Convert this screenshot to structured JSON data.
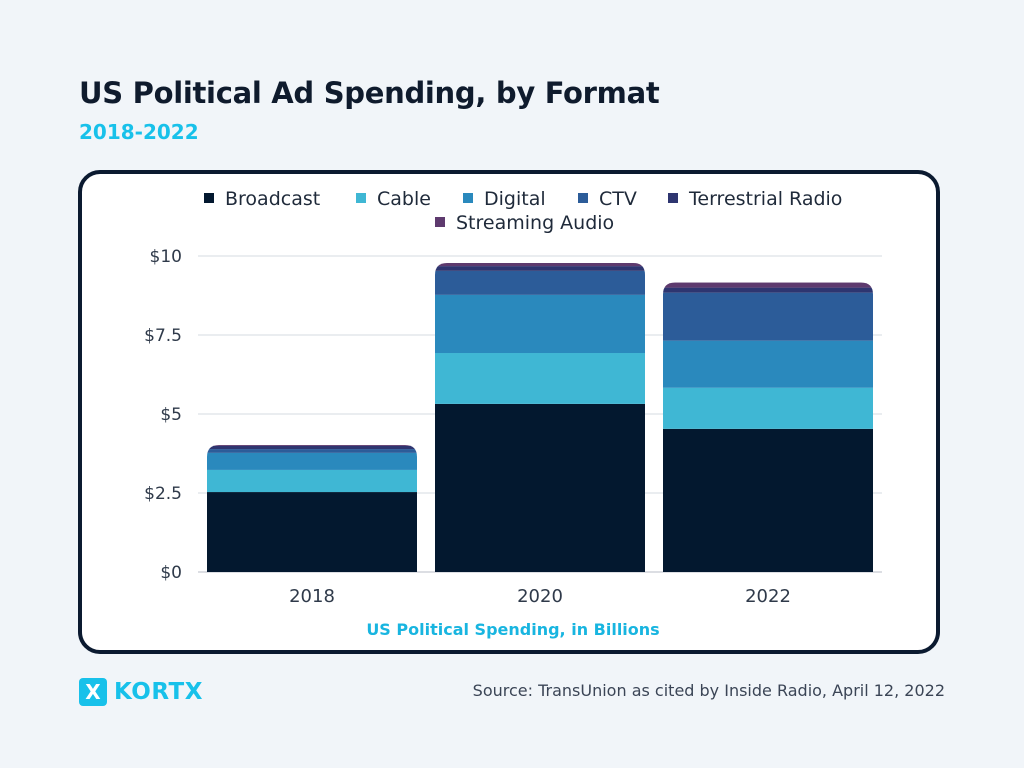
{
  "header": {
    "title": "US Political Ad Spending, by Format",
    "subtitle": "2018-2022"
  },
  "footer": {
    "logo_mark": "X",
    "logo_text": "KORTX",
    "source": "Source: TransUnion as cited by Inside Radio, April 12, 2022"
  },
  "chart_data": {
    "type": "bar",
    "stacked": true,
    "title": "US Political Ad Spending, by Format",
    "subtitle": "2018-2022",
    "xlabel": "US Political Spending, in Billions",
    "ylabel": "",
    "categories": [
      "2018",
      "2020",
      "2022"
    ],
    "ylim": [
      0,
      10
    ],
    "yticks": [
      0,
      2.5,
      5,
      7.5,
      10
    ],
    "ytick_labels": [
      "$0",
      "$2.5",
      "$5",
      "$7.5",
      "$10"
    ],
    "grid": true,
    "legend_position": "top-center",
    "series": [
      {
        "name": "Broadcast",
        "color": "#03182f",
        "values": [
          2.53,
          5.32,
          4.53
        ]
      },
      {
        "name": "Cable",
        "color": "#3fb7d4",
        "values": [
          0.7,
          1.61,
          1.3
        ]
      },
      {
        "name": "Digital",
        "color": "#2a89bd",
        "values": [
          0.54,
          1.84,
          1.49
        ]
      },
      {
        "name": "CTV",
        "color": "#2c5c99",
        "values": [
          0.12,
          0.76,
          1.52
        ]
      },
      {
        "name": "Terrestrial Radio",
        "color": "#2e3570",
        "values": [
          0.1,
          0.15,
          0.16
        ]
      },
      {
        "name": "Streaming Audio",
        "color": "#5e3a6e",
        "values": [
          0.03,
          0.1,
          0.16
        ]
      }
    ]
  }
}
